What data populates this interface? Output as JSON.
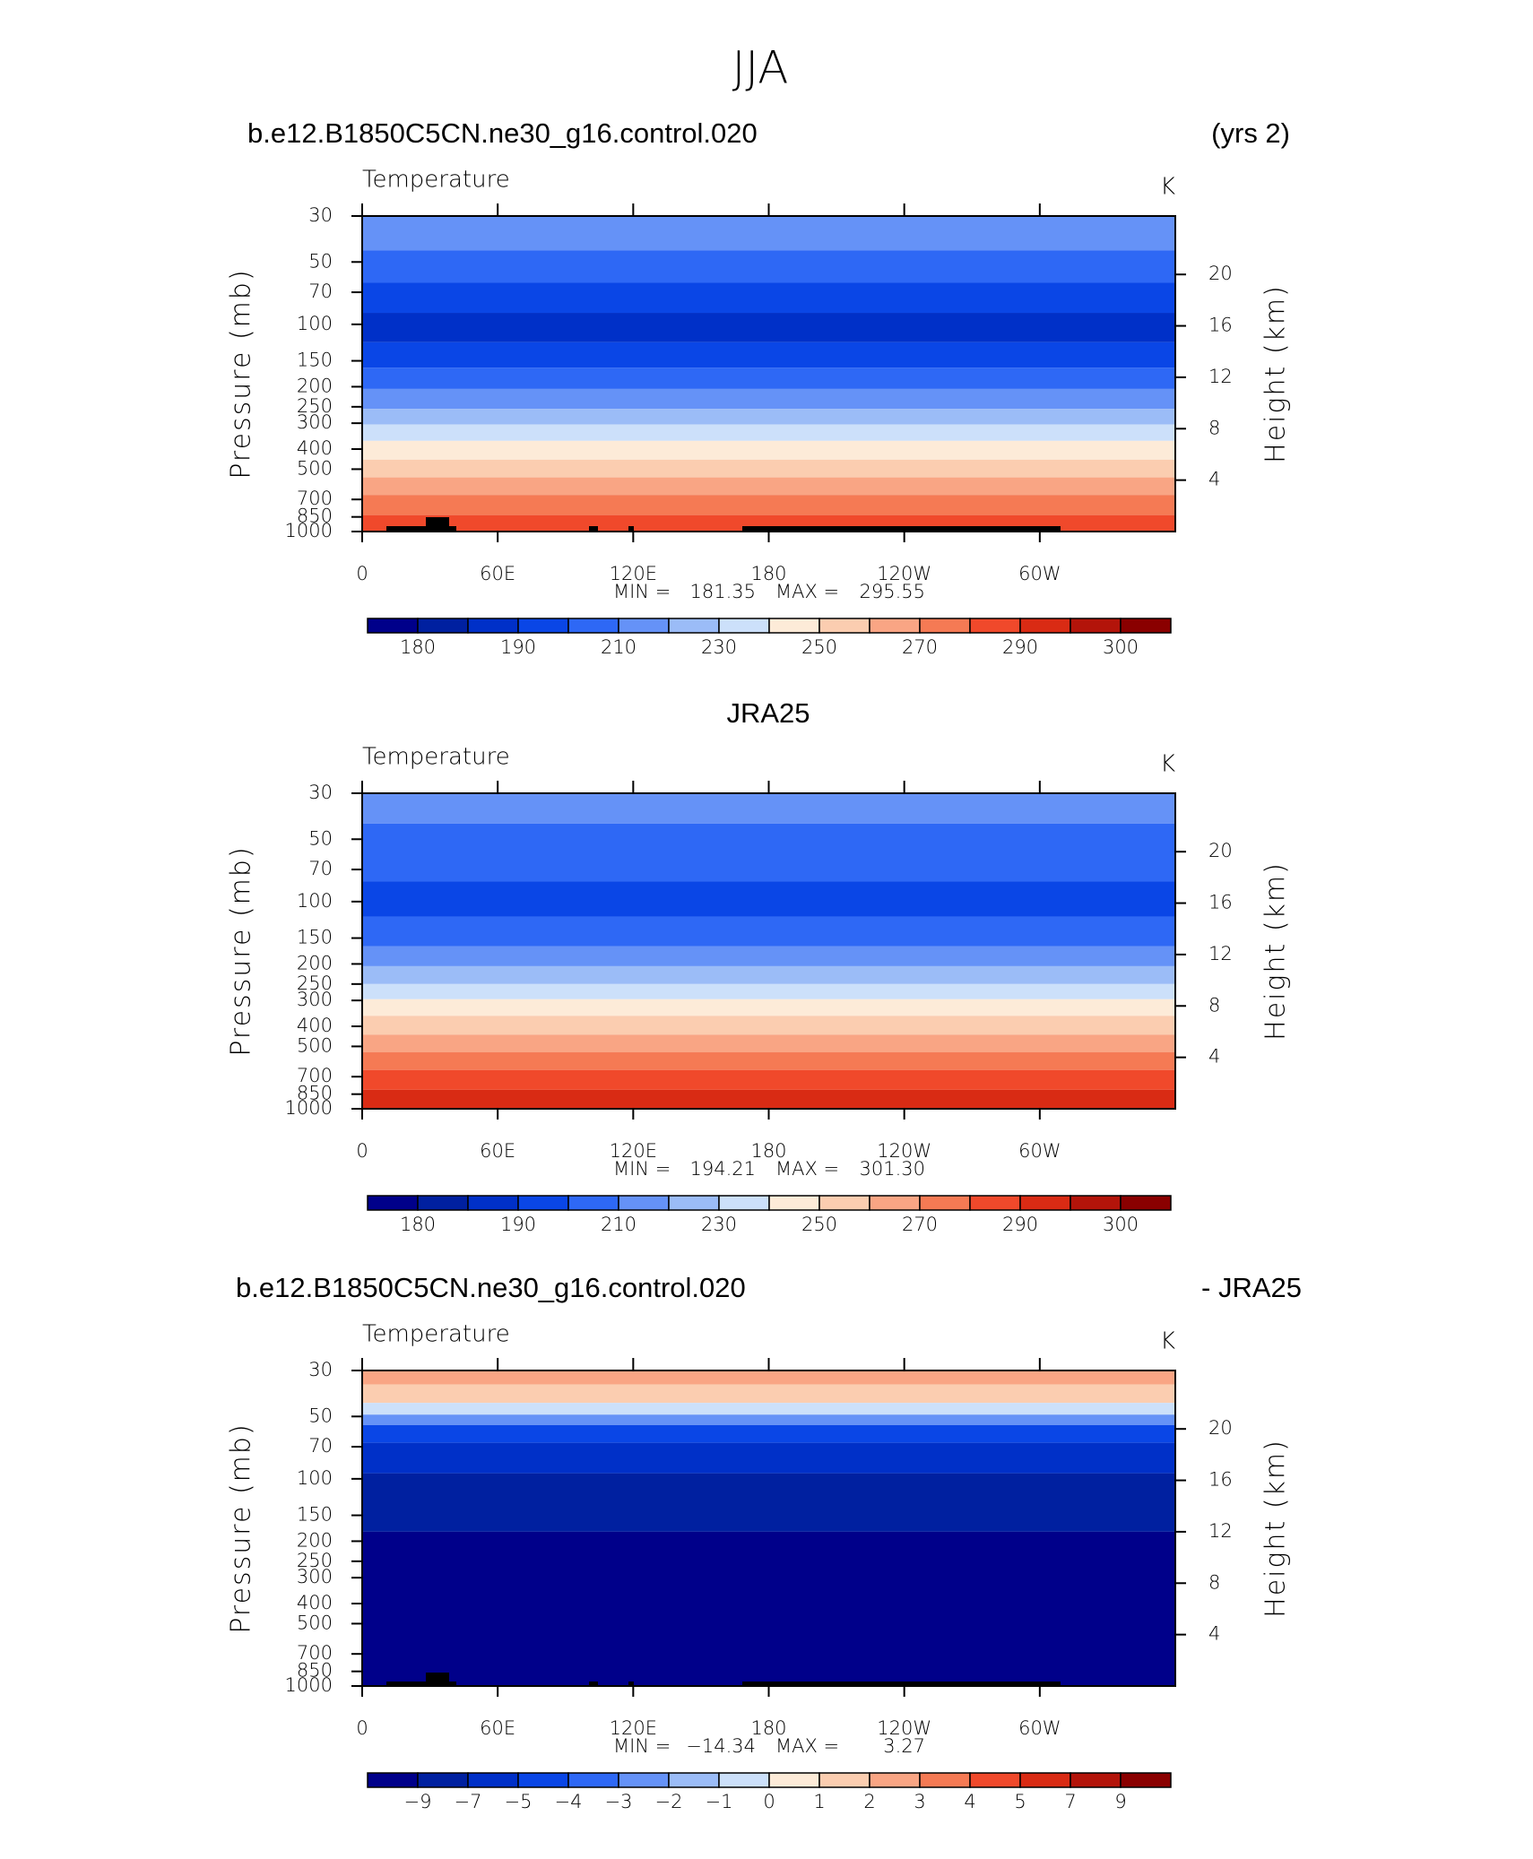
{
  "page_title": "JJA",
  "chart_data": [
    {
      "type": "contour",
      "title_left": "b.e12.B1850C5CN.ne30_g16.control.020",
      "title_right": "(yrs 2)",
      "title_center": null,
      "subtitle": "Temperature",
      "units": "K",
      "ylabel": "Pressure (mb)",
      "y2label": "Height (km)",
      "xlim": [
        0,
        360
      ],
      "xticks": [
        0,
        {
          "value": 60,
          "label": "60E"
        },
        {
          "value": 120,
          "label": "120E"
        },
        {
          "value": 180,
          "label": "180"
        },
        {
          "value": 240,
          "label": "120W"
        },
        {
          "value": 300,
          "label": "60W"
        }
      ],
      "ylim": [
        1000,
        30
      ],
      "log_scale": true,
      "yticks": [
        30,
        50,
        70,
        100,
        150,
        200,
        250,
        300,
        400,
        500,
        700,
        850,
        1000
      ],
      "y2ticks": [
        4,
        8,
        12,
        16,
        20
      ],
      "min_label": "MIN =",
      "min": 181.35,
      "max_label": "MAX =",
      "max": 295.55,
      "layers": {
        "pressure": [
          30,
          44,
          63,
          88,
          122,
          162,
          205,
          256,
          304,
          365,
          450,
          548,
          666,
          833,
          1000
        ],
        "colors": [
          "#6592f7",
          "#2e68f5",
          "#0a46e6",
          "#0030c8",
          "#0a46e6",
          "#2e68f5",
          "#6592f7",
          "#9bbcf7",
          "#cce0fa",
          "#fdebd8",
          "#fbcdb0",
          "#f9a584",
          "#f57a54",
          "#f0492b"
        ]
      },
      "colorbar": {
        "colors": [
          "#00008a",
          "#0020a0",
          "#0030c8",
          "#0a46e6",
          "#2e68f5",
          "#6592f7",
          "#9bbcf7",
          "#cce0fa",
          "#fdebd8",
          "#fbcdb0",
          "#f9a584",
          "#f57a54",
          "#f0492b",
          "#d92b14",
          "#b3140a",
          "#8a0000"
        ],
        "ticks": [
          180,
          190,
          210,
          230,
          250,
          270,
          290,
          300
        ]
      }
    },
    {
      "type": "contour",
      "title_left": null,
      "title_right": null,
      "title_center": "JRA25",
      "subtitle": "Temperature",
      "units": "K",
      "ylabel": "Pressure (mb)",
      "y2label": "Height (km)",
      "xlim": [
        0,
        360
      ],
      "xticks": [
        0,
        {
          "value": 60,
          "label": "60E"
        },
        {
          "value": 120,
          "label": "120E"
        },
        {
          "value": 180,
          "label": "180"
        },
        {
          "value": 240,
          "label": "120W"
        },
        {
          "value": 300,
          "label": "60W"
        }
      ],
      "ylim": [
        1000,
        30
      ],
      "log_scale": true,
      "yticks": [
        30,
        50,
        70,
        100,
        150,
        200,
        250,
        300,
        400,
        500,
        700,
        850,
        1000
      ],
      "y2ticks": [
        4,
        8,
        12,
        16,
        20
      ],
      "min_label": "MIN =",
      "min": 194.21,
      "max_label": "MAX =",
      "max": {
        "value": 301.3,
        "label": "301.30"
      },
      "layers": {
        "pressure": [
          30,
          42,
          80,
          118,
          164,
          205,
          250,
          296,
          356,
          439,
          534,
          650,
          810,
          1000
        ],
        "colors": [
          "#6592f7",
          "#2e68f5",
          "#0a46e6",
          "#2e68f5",
          "#6592f7",
          "#9bbcf7",
          "#cce0fa",
          "#fdebd8",
          "#fbcdb0",
          "#f9a584",
          "#f57a54",
          "#f0492b",
          "#d92b14"
        ]
      },
      "colorbar": {
        "colors": [
          "#00008a",
          "#0020a0",
          "#0030c8",
          "#0a46e6",
          "#2e68f5",
          "#6592f7",
          "#9bbcf7",
          "#cce0fa",
          "#fdebd8",
          "#fbcdb0",
          "#f9a584",
          "#f57a54",
          "#f0492b",
          "#d92b14",
          "#b3140a",
          "#8a0000"
        ],
        "ticks": [
          180,
          190,
          210,
          230,
          250,
          270,
          290,
          300
        ]
      }
    },
    {
      "type": "contour",
      "title_left": "b.e12.B1850C5CN.ne30_g16.control.020",
      "title_right": "- JRA25",
      "title_center": null,
      "subtitle": "Temperature",
      "units": "K",
      "ylabel": "Pressure (mb)",
      "y2label": "Height (km)",
      "xlim": [
        0,
        360
      ],
      "xticks": [
        0,
        {
          "value": 60,
          "label": "60E"
        },
        {
          "value": 120,
          "label": "120E"
        },
        {
          "value": 180,
          "label": "180"
        },
        {
          "value": 240,
          "label": "120W"
        },
        {
          "value": 300,
          "label": "60W"
        }
      ],
      "ylim": [
        1000,
        30
      ],
      "log_scale": true,
      "yticks": [
        30,
        50,
        70,
        100,
        150,
        200,
        250,
        300,
        400,
        500,
        700,
        850,
        1000
      ],
      "y2ticks": [
        4,
        8,
        12,
        16,
        20
      ],
      "min_label": "MIN =",
      "min": {
        "value": -14.34,
        "label": "−14.34"
      },
      "max_label": "MAX =",
      "max": 3.27,
      "layers": {
        "pressure": [
          30,
          35,
          43,
          49,
          55,
          67,
          94,
          180,
          1000
        ],
        "colors": [
          "#f9a584",
          "#fbcdb0",
          "#cce0fa",
          "#6592f7",
          "#0a46e6",
          "#0030c8",
          "#0020a0",
          "#00008a"
        ]
      },
      "colorbar": {
        "colors": [
          "#00008a",
          "#0020a0",
          "#0030c8",
          "#0a46e6",
          "#2e68f5",
          "#6592f7",
          "#9bbcf7",
          "#cce0fa",
          "#fdebd8",
          "#fbcdb0",
          "#f9a584",
          "#f57a54",
          "#f0492b",
          "#d92b14",
          "#b3140a",
          "#8a0000"
        ],
        "ticks": [
          {
            "value": -9,
            "label": "−9"
          },
          {
            "value": -7,
            "label": "−7"
          },
          {
            "value": -5,
            "label": "−5"
          },
          {
            "value": -4,
            "label": "−4"
          },
          {
            "value": -3,
            "label": "−3"
          },
          {
            "value": -2,
            "label": "−2"
          },
          {
            "value": -1,
            "label": "−1"
          },
          0,
          1,
          2,
          3,
          4,
          5,
          7,
          9
        ]
      }
    }
  ]
}
